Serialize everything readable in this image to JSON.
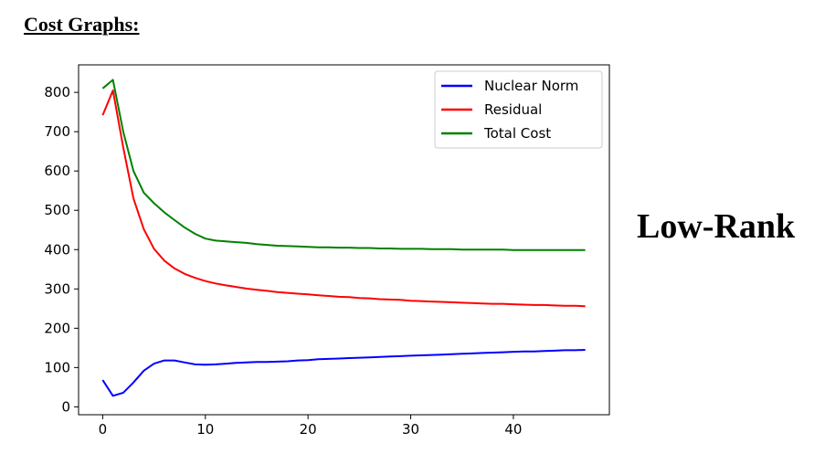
{
  "heading": "Cost Graphs:",
  "side_label": "Low-Rank",
  "chart_data": {
    "type": "line",
    "title": "",
    "xlabel": "",
    "ylabel": "",
    "xlim": [
      -2.35,
      49.35
    ],
    "ylim": [
      -20,
      870
    ],
    "xticks": [
      0,
      10,
      20,
      30,
      40
    ],
    "yticks": [
      0,
      100,
      200,
      300,
      400,
      500,
      600,
      700,
      800
    ],
    "grid": false,
    "legend_position": "top-right",
    "x": [
      0,
      1,
      2,
      3,
      4,
      5,
      6,
      7,
      8,
      9,
      10,
      11,
      12,
      13,
      14,
      15,
      16,
      17,
      18,
      19,
      20,
      21,
      22,
      23,
      24,
      25,
      26,
      27,
      28,
      29,
      30,
      31,
      32,
      33,
      34,
      35,
      36,
      37,
      38,
      39,
      40,
      41,
      42,
      43,
      44,
      45,
      46,
      47
    ],
    "series": [
      {
        "name": "Nuclear Norm",
        "color": "#0000ff",
        "values": [
          68,
          28,
          36,
          62,
          92,
          110,
          118,
          118,
          113,
          108,
          107,
          108,
          110,
          112,
          113,
          114,
          114,
          115,
          116,
          118,
          119,
          121,
          122,
          123,
          124,
          125,
          126,
          127,
          128,
          129,
          130,
          131,
          132,
          133,
          134,
          135,
          136,
          137,
          138,
          139,
          140,
          141,
          141,
          142,
          143,
          144,
          144,
          145
        ]
      },
      {
        "name": "Residual",
        "color": "#ff0000",
        "values": [
          742,
          805,
          660,
          530,
          452,
          402,
          372,
          352,
          338,
          328,
          320,
          314,
          309,
          305,
          301,
          298,
          295,
          292,
          290,
          288,
          286,
          284,
          282,
          280,
          279,
          277,
          276,
          274,
          273,
          272,
          270,
          269,
          268,
          267,
          266,
          265,
          264,
          263,
          262,
          262,
          261,
          260,
          259,
          259,
          258,
          257,
          257,
          256
        ]
      },
      {
        "name": "Total Cost",
        "color": "#008000",
        "values": [
          810,
          832,
          700,
          600,
          545,
          518,
          495,
          475,
          456,
          440,
          428,
          423,
          421,
          419,
          417,
          414,
          412,
          410,
          409,
          408,
          407,
          406,
          406,
          405,
          405,
          404,
          404,
          403,
          403,
          402,
          402,
          402,
          401,
          401,
          401,
          400,
          400,
          400,
          400,
          400,
          399,
          399,
          399,
          399,
          399,
          399,
          399,
          399
        ]
      }
    ]
  }
}
